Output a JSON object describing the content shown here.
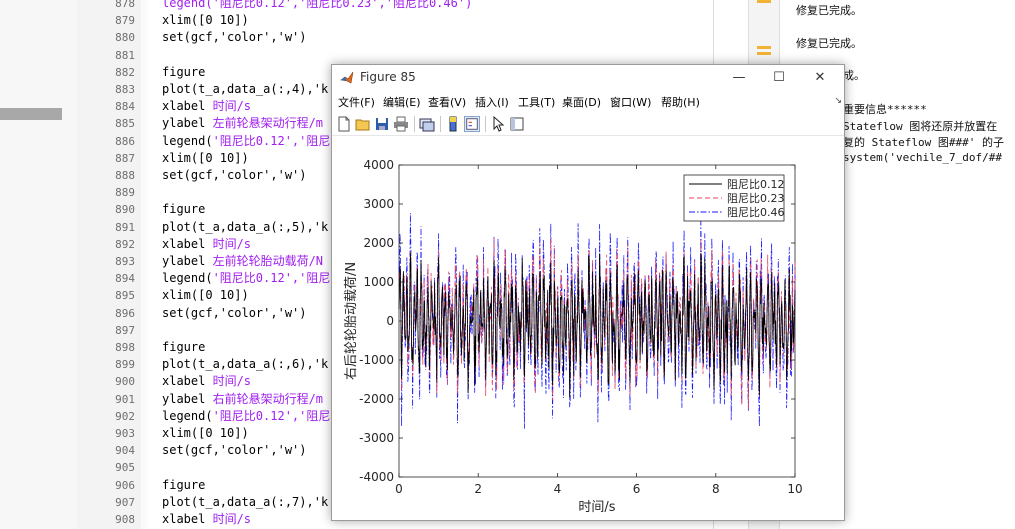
{
  "editor": {
    "line_numbers": [
      "878",
      "879",
      "880",
      "881",
      "882",
      "883",
      "884",
      "885",
      "886",
      "887",
      "888",
      "889",
      "890",
      "891",
      "892",
      "893",
      "894",
      "895",
      "896",
      "897",
      "898",
      "899",
      "900",
      "901",
      "902",
      "903",
      "904",
      "905",
      "906",
      "907",
      "908"
    ],
    "lines": [
      [
        {
          "t": "legend('阻尼比0.12','阻尼比0.23','阻尼比0.46')",
          "c": "str"
        }
      ],
      [
        {
          "t": "xlim([0 10])",
          "c": ""
        }
      ],
      [
        {
          "t": "set(gcf,'color','w')",
          "c": ""
        }
      ],
      [],
      [
        {
          "t": "figure",
          "c": ""
        }
      ],
      [
        {
          "t": "plot(t_a,data_a(:,4),'k",
          "c": ""
        }
      ],
      [
        {
          "t": "xlabel ",
          "c": ""
        },
        {
          "t": "时间/s",
          "c": "cm"
        }
      ],
      [
        {
          "t": "ylabel ",
          "c": ""
        },
        {
          "t": "左前轮悬架动行程/m",
          "c": "cm"
        }
      ],
      [
        {
          "t": "legend(",
          "c": ""
        },
        {
          "t": "'阻尼比0.12','阻尼",
          "c": "str"
        }
      ],
      [
        {
          "t": "xlim([0 10])",
          "c": ""
        }
      ],
      [
        {
          "t": "set(gcf,'color','w')",
          "c": ""
        }
      ],
      [],
      [
        {
          "t": "figure",
          "c": ""
        }
      ],
      [
        {
          "t": "plot(t_a,data_a(:,5),'k",
          "c": ""
        }
      ],
      [
        {
          "t": "xlabel ",
          "c": ""
        },
        {
          "t": "时间/s",
          "c": "cm"
        }
      ],
      [
        {
          "t": "ylabel ",
          "c": ""
        },
        {
          "t": "左前轮轮胎动载荷/N",
          "c": "cm"
        }
      ],
      [
        {
          "t": "legend(",
          "c": ""
        },
        {
          "t": "'阻尼比0.12','阻尼",
          "c": "str"
        }
      ],
      [
        {
          "t": "xlim([0 10])",
          "c": ""
        }
      ],
      [
        {
          "t": "set(gcf,'color','w')",
          "c": ""
        }
      ],
      [],
      [
        {
          "t": "figure",
          "c": ""
        }
      ],
      [
        {
          "t": "plot(t_a,data_a(:,6),'k",
          "c": ""
        }
      ],
      [
        {
          "t": "xlabel ",
          "c": ""
        },
        {
          "t": "时间/s",
          "c": "cm"
        }
      ],
      [
        {
          "t": "ylabel ",
          "c": ""
        },
        {
          "t": "右前轮悬架动行程/m",
          "c": "cm"
        }
      ],
      [
        {
          "t": "legend(",
          "c": ""
        },
        {
          "t": "'阻尼比0.12','阻尼",
          "c": "str"
        }
      ],
      [
        {
          "t": "xlim([0 10])",
          "c": ""
        }
      ],
      [
        {
          "t": "set(gcf,'color','w')",
          "c": ""
        }
      ],
      [],
      [
        {
          "t": "figure",
          "c": ""
        }
      ],
      [
        {
          "t": "plot(t_a,data_a(:,7),'k",
          "c": ""
        }
      ],
      [
        {
          "t": "xlabel ",
          "c": ""
        },
        {
          "t": "时间/s",
          "c": "cm"
        }
      ]
    ]
  },
  "command_window": {
    "messages": [
      "修复已完成。",
      "修复已完成。",
      "成。"
    ],
    "warning_header": "重要信息******",
    "stateflow_1": "Stateflow 图将还原并放置在",
    "stateflow_2": "复的 Stateflow 图###' 的子",
    "stateflow_3": "system('vechile_7_dof/##"
  },
  "figure_window": {
    "title": "Figure 85",
    "buttons": {
      "minimize": "—",
      "maximize": "☐",
      "close": "✕"
    },
    "menu": [
      "文件(F)",
      "编辑(E)",
      "查看(V)",
      "插入(I)",
      "工具(T)",
      "桌面(D)",
      "窗口(W)",
      "帮助(H)"
    ],
    "toolbar_icons": [
      "new-figure-icon",
      "open-file-icon",
      "save-icon",
      "print-icon",
      "link-plot-icon",
      "colorbar-icon",
      "legend-icon",
      "pointer-icon",
      "property-editor-icon"
    ]
  },
  "chart_data": {
    "type": "line",
    "title": "",
    "xlabel": "时间/s",
    "ylabel": "右后轮轮胎动载荷/N",
    "xlim": [
      0,
      10
    ],
    "ylim": [
      -4000,
      4000
    ],
    "xticks": [
      "0",
      "2",
      "4",
      "6",
      "8",
      "10"
    ],
    "yticks": [
      "-4000",
      "-3000",
      "-2000",
      "-1000",
      "0",
      "1000",
      "2000",
      "3000",
      "4000"
    ],
    "legend_position": "top-right",
    "grid": false,
    "series": [
      {
        "name": "阻尼比0.12",
        "color": "#000000",
        "style": "solid",
        "amplitude": 1400
      },
      {
        "name": "阻尼比0.23",
        "color": "#e8405a",
        "style": "dashed",
        "amplitude": 1650
      },
      {
        "name": "阻尼比0.46",
        "color": "#1a1aff",
        "style": "dashdot",
        "amplitude": 2000
      }
    ]
  }
}
